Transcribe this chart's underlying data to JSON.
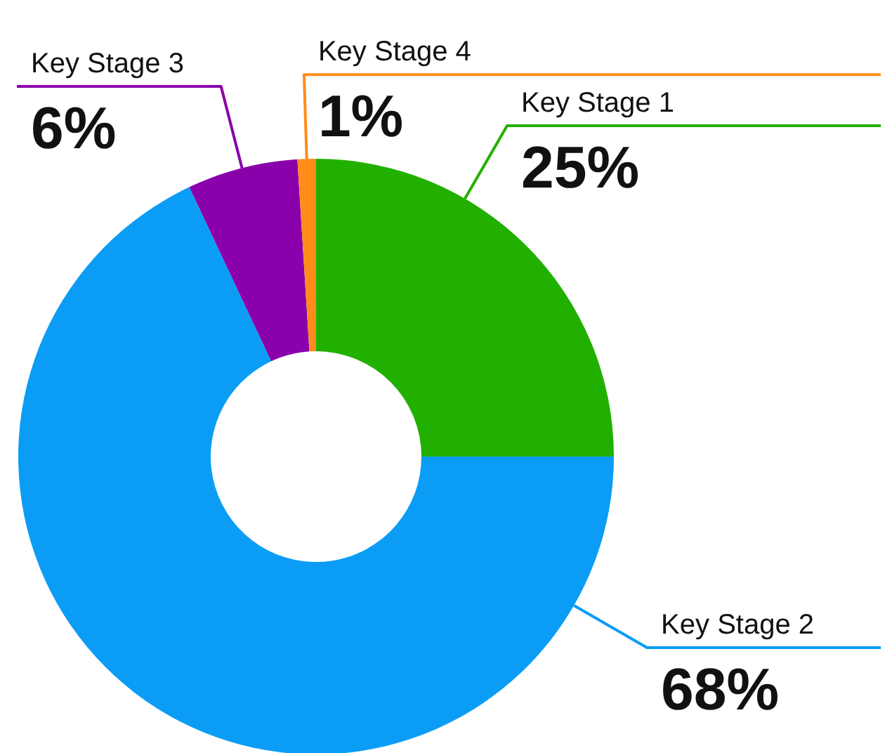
{
  "chart_data": {
    "type": "donut",
    "categories": [
      "Key Stage 1",
      "Key Stage 2",
      "Key Stage 3",
      "Key Stage 4"
    ],
    "values": [
      25,
      68,
      6,
      1
    ],
    "value_labels": [
      "25%",
      "68%",
      "6%",
      "1%"
    ],
    "colors": [
      "#22b000",
      "#0b9df5",
      "#8a00aa",
      "#ff8c1a"
    ]
  }
}
